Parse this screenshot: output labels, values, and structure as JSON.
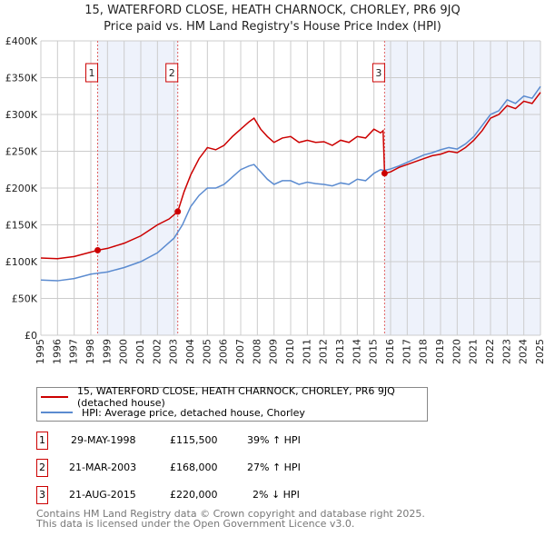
{
  "chart_data": {
    "type": "line",
    "title": "15, WATERFORD CLOSE, HEATH CHARNOCK, CHORLEY, PR6 9JQ",
    "subtitle": "Price paid vs. HM Land Registry's House Price Index (HPI)",
    "xlim": [
      1995,
      2025
    ],
    "ylim": [
      0,
      400000
    ],
    "x_ticks": [
      "1995",
      "1996",
      "1997",
      "1998",
      "1999",
      "2000",
      "2001",
      "2002",
      "2003",
      "2004",
      "2005",
      "2006",
      "2007",
      "2008",
      "2009",
      "2010",
      "2011",
      "2012",
      "2013",
      "2014",
      "2015",
      "2016",
      "2017",
      "2018",
      "2019",
      "2020",
      "2021",
      "2022",
      "2023",
      "2024",
      "2025"
    ],
    "y_ticks": [
      {
        "v": 0,
        "label": "£0"
      },
      {
        "v": 50000,
        "label": "£50K"
      },
      {
        "v": 100000,
        "label": "£100K"
      },
      {
        "v": 150000,
        "label": "£150K"
      },
      {
        "v": 200000,
        "label": "£200K"
      },
      {
        "v": 250000,
        "label": "£250K"
      },
      {
        "v": 300000,
        "label": "£300K"
      },
      {
        "v": 350000,
        "label": "£350K"
      },
      {
        "v": 400000,
        "label": "£400K"
      }
    ],
    "grid": true,
    "series": [
      {
        "name": "15, WATERFORD CLOSE, HEATH CHARNOCK, CHORLEY, PR6 9JQ (detached house)",
        "color": "#cc0000",
        "x": [
          1995,
          1996,
          1997,
          1998,
          1998.41,
          1999,
          2000,
          2001,
          2002,
          2002.7,
          2003.22,
          2003.6,
          2004,
          2004.5,
          2005,
          2005.5,
          2006,
          2006.5,
          2007,
          2007.5,
          2007.8,
          2008.2,
          2008.6,
          2009,
          2009.5,
          2010,
          2010.5,
          2011,
          2011.5,
          2012,
          2012.5,
          2013,
          2013.5,
          2014,
          2014.5,
          2015,
          2015.4,
          2015.55,
          2015.64,
          2016,
          2016.5,
          2017,
          2017.5,
          2018,
          2018.5,
          2019,
          2019.5,
          2020,
          2020.5,
          2021,
          2021.5,
          2022,
          2022.5,
          2023,
          2023.5,
          2024,
          2024.5,
          2025
        ],
        "y": [
          105000,
          104000,
          107000,
          113000,
          115500,
          118000,
          125000,
          135000,
          150000,
          158000,
          168000,
          195000,
          218000,
          240000,
          255000,
          252000,
          258000,
          270000,
          280000,
          290000,
          295000,
          280000,
          270000,
          262000,
          268000,
          270000,
          262000,
          265000,
          262000,
          263000,
          258000,
          265000,
          262000,
          270000,
          268000,
          280000,
          275000,
          278000,
          220000,
          222000,
          228000,
          232000,
          236000,
          240000,
          244000,
          246000,
          250000,
          248000,
          255000,
          265000,
          278000,
          295000,
          300000,
          312000,
          308000,
          318000,
          315000,
          330000
        ]
      },
      {
        "name": "HPI: Average price, detached house, Chorley",
        "color": "#5b8bd0",
        "x": [
          1995,
          1996,
          1997,
          1998,
          1999,
          2000,
          2001,
          2002,
          2003,
          2003.5,
          2004,
          2004.5,
          2005,
          2005.5,
          2006,
          2006.5,
          2007,
          2007.5,
          2007.8,
          2008.2,
          2008.6,
          2009,
          2009.5,
          2010,
          2010.5,
          2011,
          2011.5,
          2012,
          2012.5,
          2013,
          2013.5,
          2014,
          2014.5,
          2015,
          2015.4,
          2015.6,
          2016,
          2016.5,
          2017,
          2017.5,
          2018,
          2018.5,
          2019,
          2019.5,
          2020,
          2020.5,
          2021,
          2021.5,
          2022,
          2022.5,
          2023,
          2023.5,
          2024,
          2024.5,
          2025
        ],
        "y": [
          75000,
          74000,
          77000,
          83000,
          86000,
          92000,
          100000,
          112000,
          132000,
          150000,
          175000,
          190000,
          200000,
          200000,
          205000,
          215000,
          225000,
          230000,
          232000,
          222000,
          212000,
          205000,
          210000,
          210000,
          205000,
          208000,
          206000,
          205000,
          203000,
          207000,
          205000,
          212000,
          210000,
          220000,
          225000,
          224000,
          226000,
          230000,
          235000,
          240000,
          245000,
          248000,
          252000,
          255000,
          253000,
          260000,
          270000,
          285000,
          300000,
          305000,
          320000,
          315000,
          325000,
          322000,
          338000
        ]
      }
    ],
    "sales": [
      {
        "n": "1",
        "x": 1998.41,
        "y": 115500,
        "date": "29-MAY-1998",
        "price": "£115,500",
        "hpi": "39% ↑ HPI"
      },
      {
        "n": "2",
        "x": 2003.22,
        "y": 168000,
        "date": "21-MAR-2003",
        "price": "£168,000",
        "hpi": "27% ↑ HPI"
      },
      {
        "n": "3",
        "x": 2015.64,
        "y": 220000,
        "date": "21-AUG-2015",
        "price": "£220,000",
        "hpi": "2% ↓ HPI"
      }
    ],
    "shaded": [
      [
        1998.41,
        2003.22
      ],
      [
        2015.64,
        2025
      ]
    ]
  },
  "footer": {
    "line1": "Contains HM Land Registry data © Crown copyright and database right 2025.",
    "line2": "This data is licensed under the Open Government Licence v3.0."
  }
}
